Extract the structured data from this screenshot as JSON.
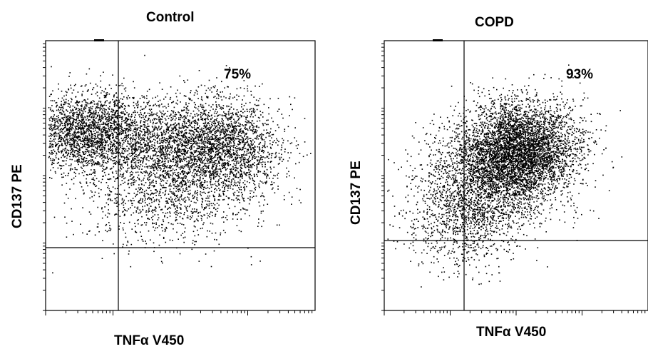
{
  "chart_data": [
    {
      "type": "scatter",
      "title": "Control",
      "xlabel": "TNFα V450",
      "ylabel": "CD137 PE",
      "x_scale": "log",
      "y_scale": "log",
      "quadrant_annotation": "75%",
      "quadrant_upper_percent": 75,
      "color": "#000000",
      "clusters": [
        {
          "x_center": 0.16,
          "y_center": 0.66,
          "x_spread": 0.13,
          "y_spread": 0.075,
          "n": 2600
        },
        {
          "x_center": 0.52,
          "y_center": 0.6,
          "x_spread": 0.14,
          "y_spread": 0.09,
          "n": 2500
        },
        {
          "x_center": 0.7,
          "y_center": 0.62,
          "x_spread": 0.09,
          "y_spread": 0.09,
          "n": 1000
        },
        {
          "x_center": 0.45,
          "y_center": 0.4,
          "x_spread": 0.17,
          "y_spread": 0.08,
          "n": 800
        }
      ]
    },
    {
      "type": "scatter",
      "title": "COPD",
      "xlabel": "TNFα V450",
      "ylabel": "CD137 PE",
      "x_scale": "log",
      "y_scale": "log",
      "quadrant_annotation": "93%",
      "quadrant_upper_percent": 93,
      "color": "#000000",
      "clusters": [
        {
          "x_center": 0.52,
          "y_center": 0.6,
          "x_spread": 0.11,
          "y_spread": 0.09,
          "n": 4200
        },
        {
          "x_center": 0.38,
          "y_center": 0.48,
          "x_spread": 0.12,
          "y_spread": 0.1,
          "n": 2000
        },
        {
          "x_center": 0.3,
          "y_center": 0.32,
          "x_spread": 0.1,
          "y_spread": 0.09,
          "n": 700
        }
      ]
    }
  ]
}
